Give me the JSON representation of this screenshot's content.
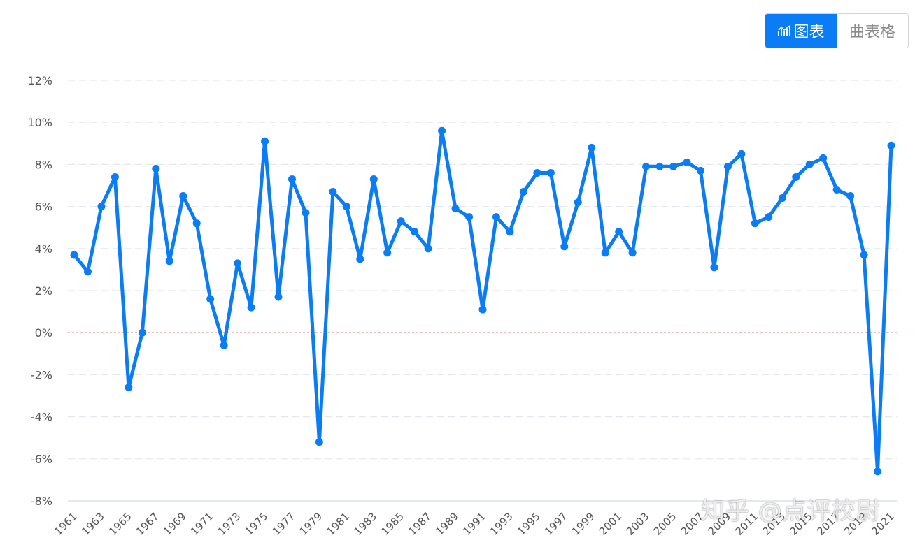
{
  "toggle": {
    "chart_label": "图表",
    "table_label": "曲表格",
    "chart_icon": "line-chart-icon",
    "table_icon": "table-grid-icon"
  },
  "watermark": "知乎 @点评校尉",
  "colors": {
    "accent": "#0a7cf5",
    "line": "#0a7cf5",
    "zero_line": "#d9534f",
    "grid": "#e4e7ec"
  },
  "chart_data": {
    "type": "line",
    "title": "",
    "xlabel": "",
    "ylabel": "",
    "ylim": [
      -8,
      12
    ],
    "y_ticks": [
      "12%",
      "10%",
      "8%",
      "6%",
      "4%",
      "2%",
      "0%",
      "-2%",
      "-4%",
      "-6%",
      "-8%"
    ],
    "x": [
      1961,
      1962,
      1963,
      1964,
      1965,
      1966,
      1967,
      1968,
      1969,
      1970,
      1971,
      1972,
      1973,
      1974,
      1975,
      1976,
      1977,
      1978,
      1979,
      1980,
      1981,
      1982,
      1983,
      1984,
      1985,
      1986,
      1987,
      1988,
      1989,
      1990,
      1991,
      1992,
      1993,
      1994,
      1995,
      1996,
      1997,
      1998,
      1999,
      2000,
      2001,
      2002,
      2003,
      2004,
      2005,
      2006,
      2007,
      2008,
      2009,
      2010,
      2011,
      2012,
      2013,
      2014,
      2015,
      2016,
      2017,
      2018,
      2019,
      2020,
      2021
    ],
    "x_tick_labels": [
      "1961",
      "1963",
      "1965",
      "1967",
      "1969",
      "1971",
      "1973",
      "1975",
      "1977",
      "1979",
      "1981",
      "1983",
      "1985",
      "1987",
      "1989",
      "1991",
      "1993",
      "1995",
      "1997",
      "1999",
      "2001",
      "2003",
      "2005",
      "2007",
      "2009",
      "2011",
      "2013",
      "2015",
      "2017",
      "2019",
      "2021"
    ],
    "series": [
      {
        "values": [
          3.7,
          2.9,
          6.0,
          7.4,
          -2.6,
          0.0,
          7.8,
          3.4,
          6.5,
          5.2,
          1.6,
          -0.6,
          3.3,
          1.2,
          9.1,
          1.7,
          7.3,
          5.7,
          -5.2,
          6.7,
          6.0,
          3.5,
          7.3,
          3.8,
          5.3,
          4.8,
          4.0,
          9.6,
          5.9,
          5.5,
          1.1,
          5.5,
          4.8,
          6.7,
          7.6,
          7.6,
          4.1,
          6.2,
          8.8,
          3.8,
          4.8,
          3.8,
          7.9,
          7.9,
          7.9,
          8.1,
          7.7,
          3.1,
          7.9,
          8.5,
          5.2,
          5.5,
          6.4,
          7.4,
          8.0,
          8.3,
          6.8,
          6.5,
          3.7,
          -6.6,
          8.9
        ]
      }
    ],
    "reference_line": 0,
    "grid": true,
    "legend": "none"
  }
}
